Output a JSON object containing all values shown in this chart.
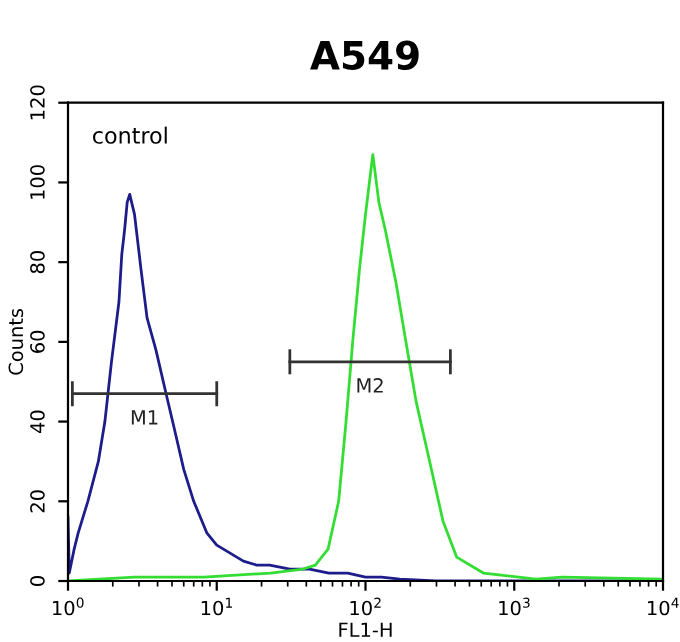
{
  "chart_data": {
    "type": "line",
    "title": "A549",
    "xlabel": "FL1-H",
    "ylabel": "Counts",
    "log": "x",
    "annotations": [
      "control"
    ],
    "xlim": [
      1,
      10000
    ],
    "ylim": [
      0,
      120
    ],
    "xticks": [
      {
        "value": 1,
        "label": "10$^{0}$"
      },
      {
        "value": 10,
        "label": "10$^{1}$"
      },
      {
        "value": 100,
        "label": "10$^{2}$"
      },
      {
        "value": 1000,
        "label": "10$^{3}$"
      },
      {
        "value": 10000,
        "label": "10$^{4}$"
      }
    ],
    "yticks": [
      0,
      20,
      40,
      60,
      80,
      100,
      120
    ],
    "grid": false,
    "legend": false,
    "series": [
      {
        "color": "#1c1c8a",
        "x": [
          1.0,
          1.02,
          1.1,
          1.17,
          1.36,
          1.6,
          1.77,
          1.96,
          2.2,
          2.3,
          2.4,
          2.5,
          2.6,
          2.8,
          3.1,
          3.4,
          3.9,
          4.5,
          5.2,
          6.0,
          7.0,
          8.6,
          10.0,
          12.3,
          15.1,
          18.5,
          22.7,
          31.0,
          42.0,
          56.7,
          76.0,
          100,
          128,
          170,
          216,
          296,
          400,
          1000,
          10000
        ],
        "values": [
          16,
          2,
          8,
          12,
          20,
          30,
          40,
          55,
          70,
          82,
          88,
          95,
          97,
          92,
          78,
          66,
          58,
          48,
          38,
          28,
          20,
          12,
          9,
          7,
          5,
          4,
          4,
          3,
          3,
          2,
          2,
          1,
          1,
          0.5,
          0.3,
          0,
          0,
          0,
          0
        ]
      },
      {
        "color": "#33dd33",
        "x": [
          1.0,
          2.8,
          8.2,
          23,
          38,
          46,
          56,
          66,
          74,
          82,
          91,
          100,
          112,
          123,
          136,
          160,
          187,
          219,
          270,
          332,
          410,
          620,
          1400,
          2100,
          10000
        ],
        "values": [
          0,
          1,
          1,
          2,
          3,
          4,
          8,
          20,
          40,
          60,
          78,
          92,
          107,
          95,
          88,
          75,
          60,
          45,
          30,
          15,
          6,
          2,
          0.5,
          1,
          0.5
        ]
      },
      {
        "type": "line",
        "name": "M1",
        "color": "#333333",
        "x": [
          1.07,
          10
        ],
        "values": [
          47,
          47
        ]
      },
      {
        "type": "line",
        "name": "M2",
        "color": "#333333",
        "x": [
          31,
          372
        ],
        "values": [
          55,
          55
        ]
      }
    ]
  }
}
